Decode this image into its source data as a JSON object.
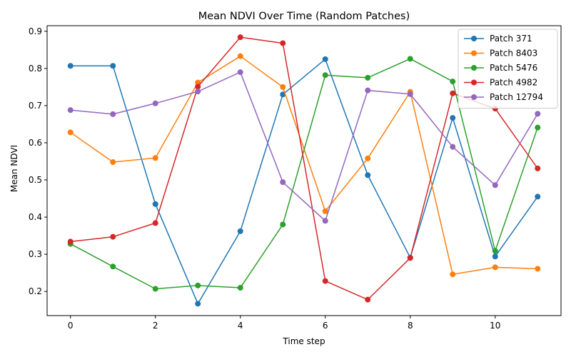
{
  "chart_data": {
    "type": "line",
    "title": "Mean NDVI Over Time (Random Patches)",
    "xlabel": "Time step",
    "ylabel": "Mean NDVI",
    "x": [
      0,
      1,
      2,
      3,
      4,
      5,
      6,
      7,
      8,
      9,
      10,
      11
    ],
    "xlim": [
      -0.55,
      11.55
    ],
    "ylim": [
      0.135,
      0.915
    ],
    "xticks": [
      0,
      2,
      4,
      6,
      8,
      10
    ],
    "yticks": [
      0.2,
      0.3,
      0.4,
      0.5,
      0.6,
      0.7,
      0.8,
      0.9
    ],
    "ytick_labels": [
      "0.2",
      "0.3",
      "0.4",
      "0.5",
      "0.6",
      "0.7",
      "0.8",
      "0.9"
    ],
    "grid": false,
    "legend_position": "top-right",
    "marker": "circle",
    "series": [
      {
        "name": "Patch 371",
        "color": "#1f77b4",
        "values": [
          0.807,
          0.807,
          0.435,
          0.167,
          0.362,
          0.73,
          0.825,
          0.513,
          0.291,
          0.667,
          0.294,
          0.455
        ]
      },
      {
        "name": "Patch 8403",
        "color": "#ff7f0e",
        "values": [
          0.628,
          0.548,
          0.559,
          0.762,
          0.833,
          0.75,
          0.416,
          0.558,
          0.737,
          0.246,
          0.265,
          0.261
        ]
      },
      {
        "name": "Patch 5476",
        "color": "#2ca02c",
        "values": [
          0.328,
          0.267,
          0.207,
          0.216,
          0.21,
          0.38,
          0.782,
          0.775,
          0.826,
          0.765,
          0.309,
          0.641
        ]
      },
      {
        "name": "Patch 4982",
        "color": "#d62728",
        "values": [
          0.334,
          0.347,
          0.384,
          0.751,
          0.884,
          0.868,
          0.228,
          0.178,
          0.29,
          0.733,
          0.692,
          0.531
        ]
      },
      {
        "name": "Patch 12794",
        "color": "#9467bd",
        "values": [
          0.688,
          0.677,
          0.706,
          0.738,
          0.79,
          0.494,
          0.39,
          0.741,
          0.731,
          0.589,
          0.486,
          0.678
        ]
      }
    ]
  }
}
